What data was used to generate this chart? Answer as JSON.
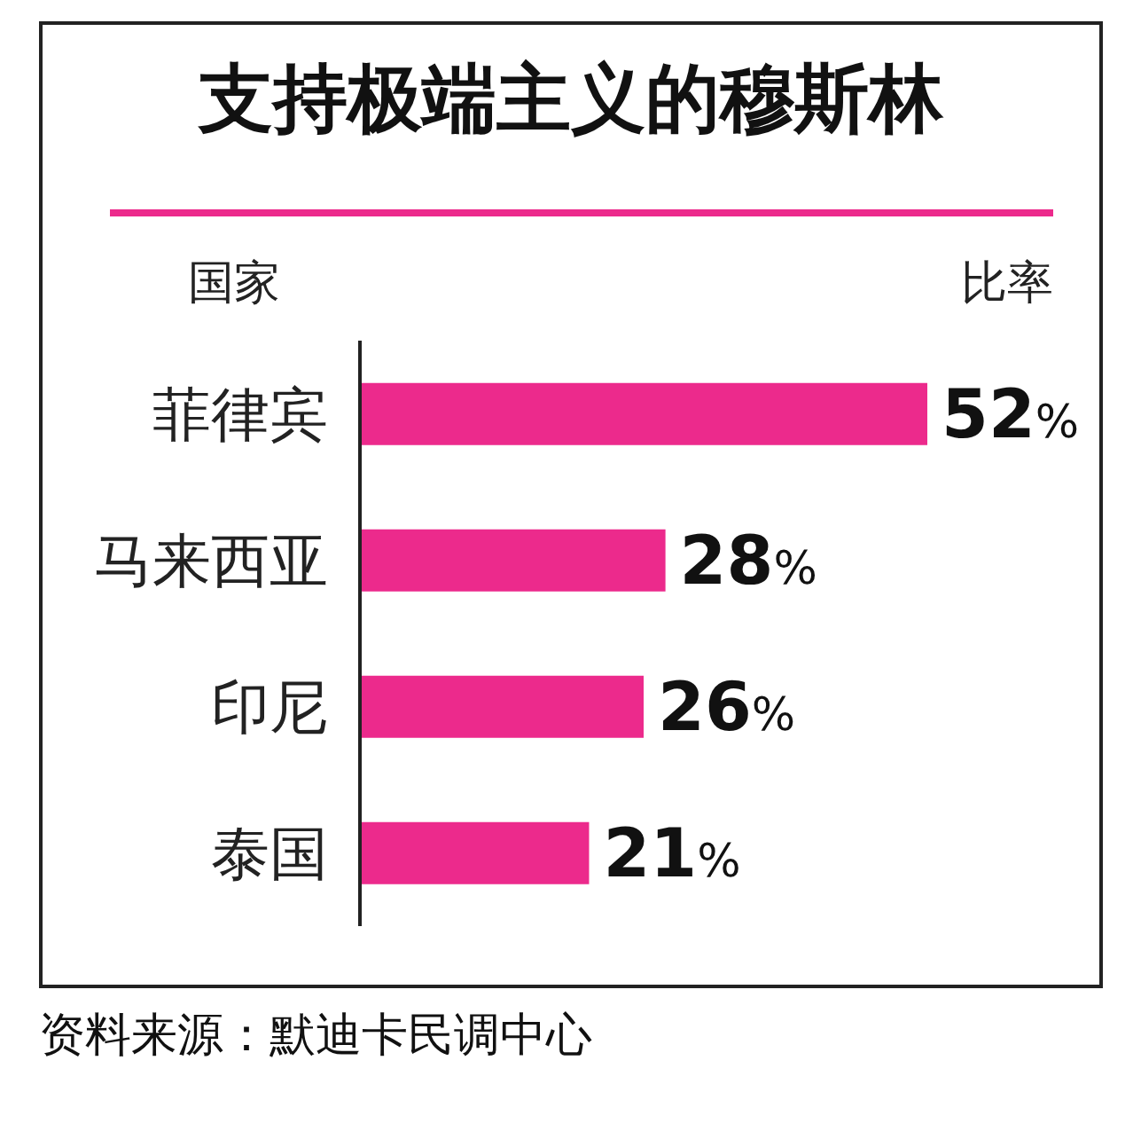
{
  "chart_data": {
    "type": "bar",
    "orientation": "horizontal",
    "title": "支持极端主义的穆斯林",
    "ylabel": "国家",
    "xlabel": "比率",
    "categories": [
      "菲律宾",
      "马来西亚",
      "印尼",
      "泰国"
    ],
    "values": [
      52,
      28,
      26,
      21
    ],
    "value_labels": [
      "52%",
      "28%",
      "26%",
      "21%"
    ],
    "color": "#ec2a8c",
    "annotations": [
      "资料来源：默迪卡民调中心"
    ]
  }
}
